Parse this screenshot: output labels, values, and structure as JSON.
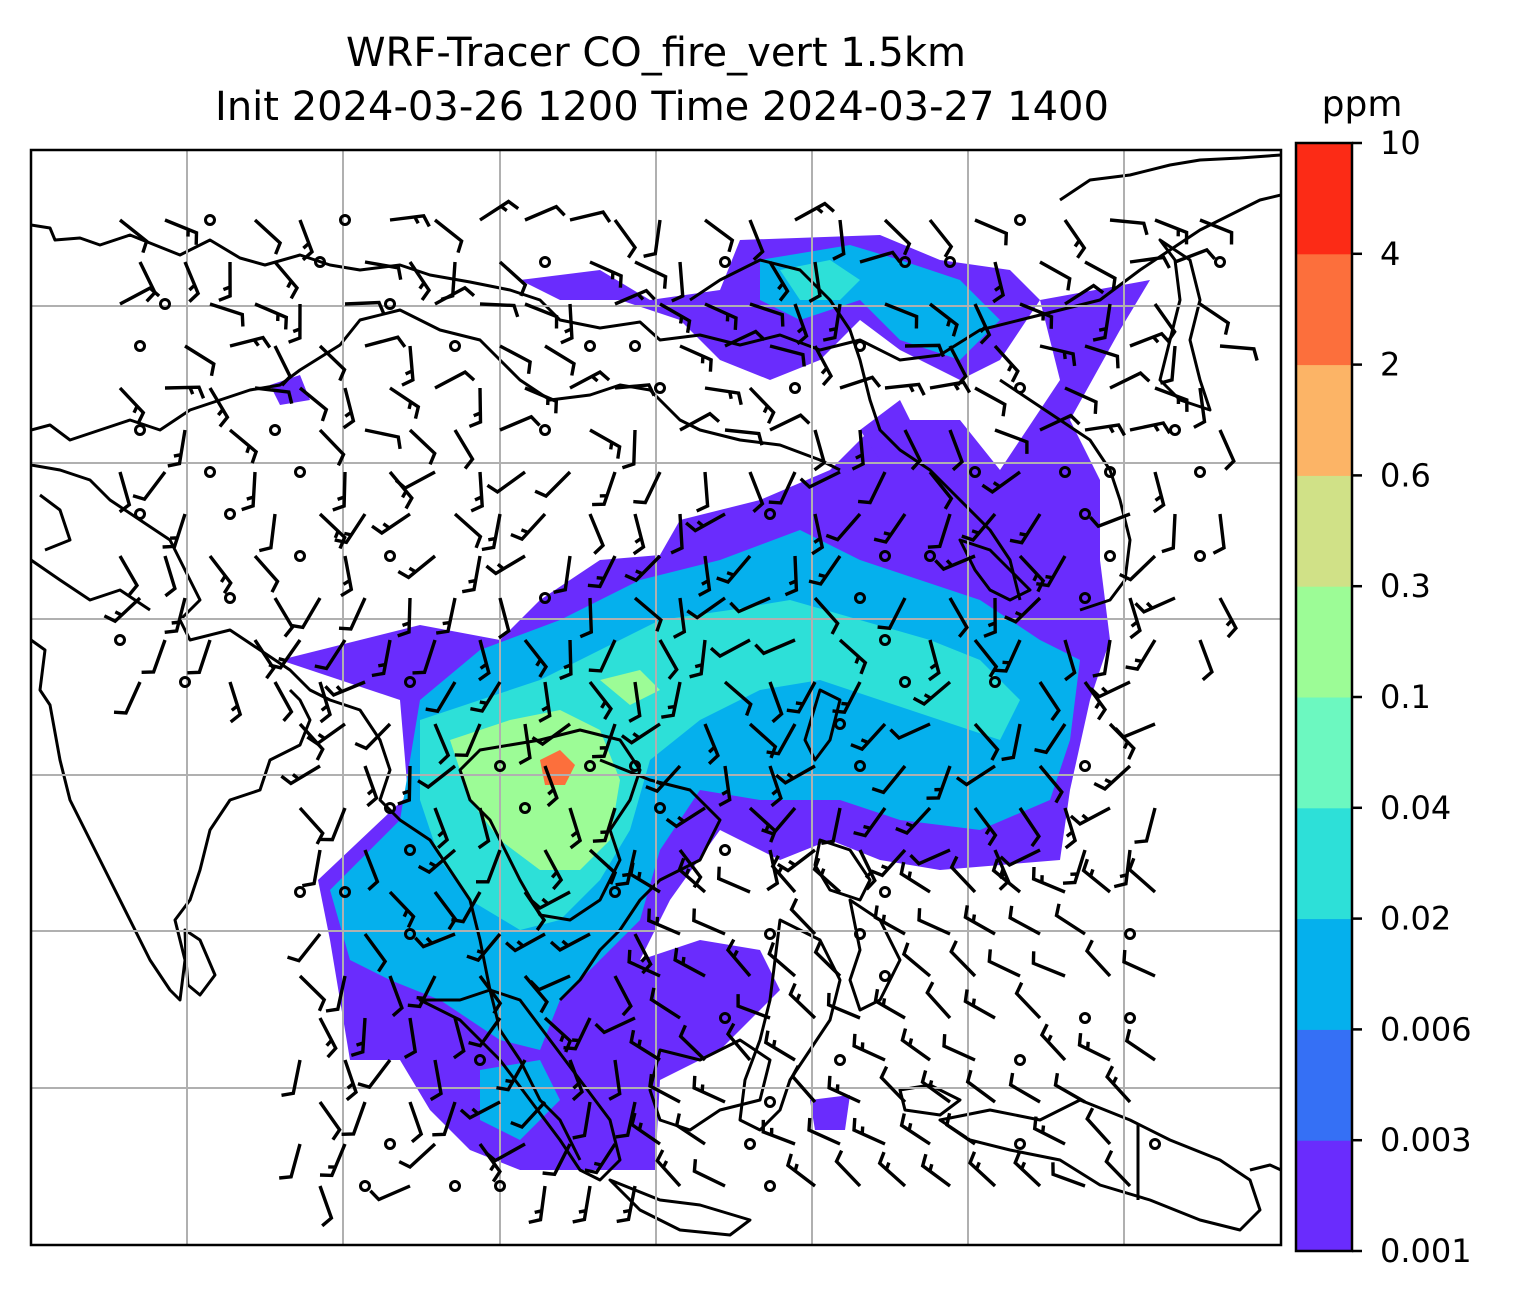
{
  "map": {
    "title_line1": "WRF-Tracer CO_fire_vert 1.5km",
    "title_line2": "Init 2024-03-26 1200 Time 2024-03-27 1400"
  },
  "colorbar": {
    "unit": "ppm",
    "levels": [
      "0.001",
      "0.003",
      "0.006",
      "0.02",
      "0.04",
      "0.1",
      "0.3",
      "0.6",
      "2",
      "4",
      "10"
    ],
    "colors": [
      "#6a2cfd",
      "#3570f5",
      "#05b0ed",
      "#2de0d8",
      "#6cf8c0",
      "#9cfc96",
      "#d0e187",
      "#fcb466",
      "#fc6f3c",
      "#fc2b16"
    ]
  },
  "plume_colors": {
    "low": "#6a2cfd",
    "mid": "#05b0ed",
    "high": "#2de0d8",
    "peak": "#9cfc96",
    "hot": "#fc6f3c"
  }
}
